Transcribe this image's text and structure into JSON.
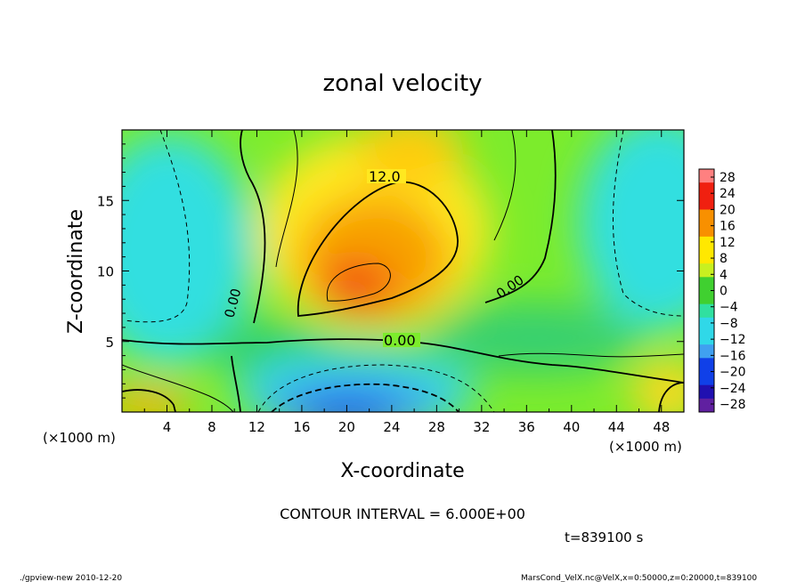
{
  "chart_data": {
    "type": "heatmap",
    "title": "zonal velocity",
    "xlabel": "X-coordinate",
    "ylabel": "Z-coordinate",
    "x_unit": "(×1000 m)",
    "y_unit": "(×1000 m)",
    "xlim": [
      0,
      50
    ],
    "ylim": [
      0,
      20
    ],
    "x_ticks": [
      "4",
      "8",
      "12",
      "16",
      "20",
      "24",
      "28",
      "32",
      "36",
      "40",
      "44",
      "48"
    ],
    "y_ticks": [
      "5",
      "10",
      "15"
    ],
    "colorbar_labels": [
      "28",
      "24",
      "20",
      "16",
      "12",
      "8",
      "4",
      "0",
      "−4",
      "−8",
      "−12",
      "−16",
      "−20",
      "−24",
      "−28"
    ],
    "contour_labels": [
      "12.0",
      "0.00",
      "0.00",
      "0.00"
    ],
    "contour_interval_text": "CONTOUR INTERVAL = 6.000E+00",
    "time_text": "t=839100 s",
    "footer_left": "./gpview-new  2010-12-20",
    "footer_right": "MarsCond_VelX.nc@VelX,x=0:50000,z=0:20000,t=839100",
    "grid": false,
    "colors": {
      "pos_max": "#ff8080",
      "red": "#f02010",
      "orange": "#f89000",
      "yellow": "#ffe800",
      "yellow_green": "#c8f020",
      "green": "#40d030",
      "cyan_green": "#30e0a0",
      "cyan": "#30d8e8",
      "light_blue": "#40a0f0",
      "blue": "#1040e8",
      "dark_blue": "#2010b0",
      "purple": "#6020a0"
    }
  }
}
